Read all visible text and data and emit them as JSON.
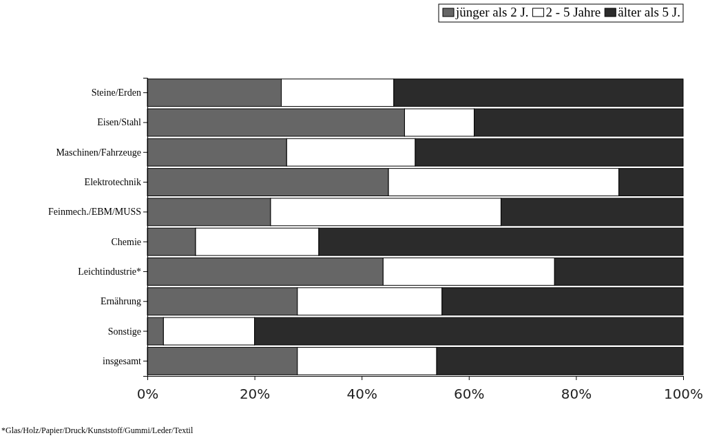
{
  "chart_data": {
    "type": "bar",
    "orientation": "horizontal",
    "stacked": true,
    "categories": [
      "Steine/Erden",
      "Eisen/Stahl",
      "Maschinen/Fahrzeuge",
      "Elektrotechnik",
      "Feinmech./EBM/MUSS",
      "Chemie",
      "Leichtindustrie*",
      "Ernährung",
      "Sonstige",
      "insgesamt"
    ],
    "series": [
      {
        "name": "jünger als 2 J.",
        "color": "#666666",
        "values": [
          25,
          48,
          26,
          45,
          23,
          9,
          44,
          28,
          3,
          28
        ]
      },
      {
        "name": "2 - 5 Jahre",
        "color": "#ffffff",
        "values": [
          21,
          13,
          24,
          43,
          43,
          23,
          32,
          27,
          17,
          26
        ]
      },
      {
        "name": "älter als 5 J.",
        "color": "#2b2b2b",
        "values": [
          54,
          39,
          50,
          12,
          34,
          68,
          24,
          45,
          80,
          46
        ]
      }
    ],
    "xlim": [
      0,
      100
    ],
    "xticks": [
      {
        "value": 0,
        "label": "0%"
      },
      {
        "value": 20,
        "label": "20%"
      },
      {
        "value": 40,
        "label": "40%"
      },
      {
        "value": 60,
        "label": "60%"
      },
      {
        "value": 80,
        "label": "80%"
      },
      {
        "value": 100,
        "label": "100%"
      }
    ],
    "grid": false,
    "legend": "top right",
    "annotations": [
      "*Glas/Holz/Papier/Druck/Kunststoff/Gummi/Leder/Textil"
    ]
  }
}
